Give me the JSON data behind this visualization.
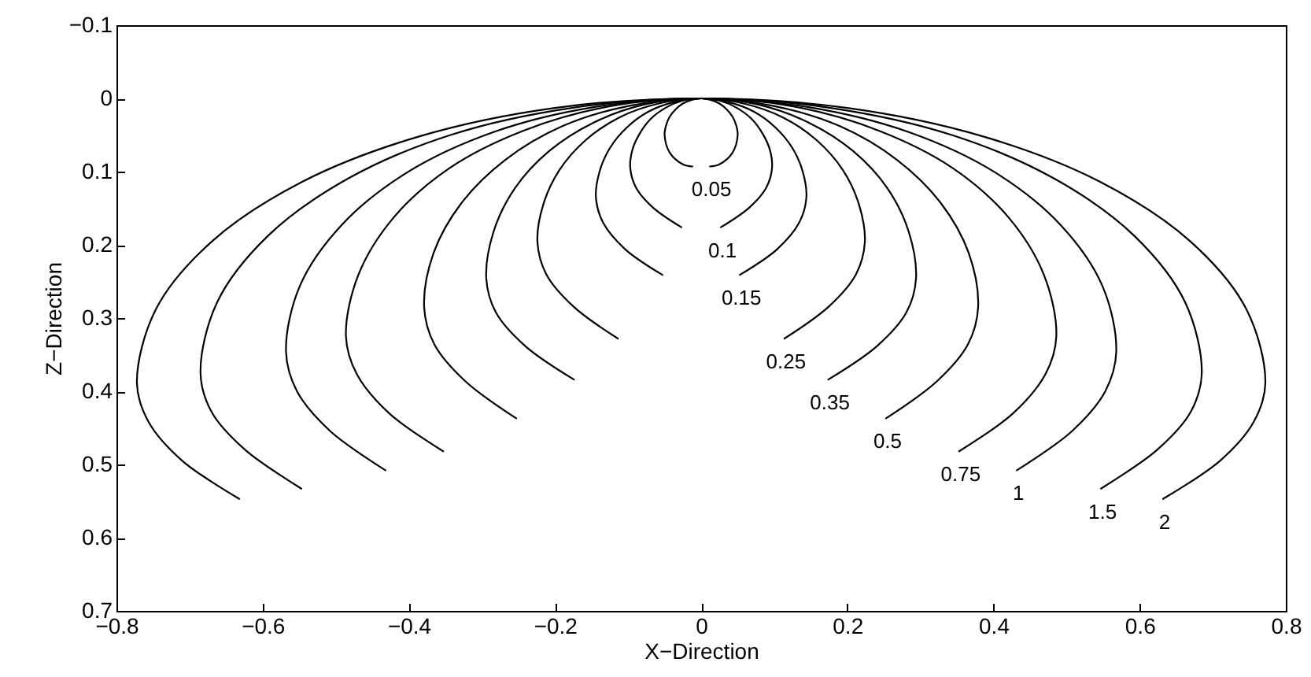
{
  "chart_data": {
    "type": "line",
    "xlabel": "X−Direction",
    "ylabel": "Z−Direction",
    "xlim": [
      -0.8,
      0.8
    ],
    "xticks": [
      -0.8,
      -0.6,
      -0.4,
      -0.2,
      0,
      0.2,
      0.4,
      0.6,
      0.8
    ],
    "ylim": [
      0.7,
      -0.1
    ],
    "yticks": [
      -0.1,
      0,
      0.1,
      0.2,
      0.3,
      0.4,
      0.5,
      0.6,
      0.7
    ],
    "series": [
      {
        "name": "0.05",
        "color": "#000000",
        "x": [
          -0.012,
          -0.025,
          -0.043,
          -0.05,
          -0.048,
          -0.043,
          -0.035,
          -0.025,
          -0.013,
          0,
          0.013,
          0.025,
          0.035,
          0.043,
          0.048,
          0.05,
          0.043,
          0.025,
          0.012
        ],
        "values": [
          0.093,
          0.09,
          0.074,
          0.05,
          0.037,
          0.025,
          0.015,
          0.007,
          0.002,
          0,
          0.002,
          0.007,
          0.015,
          0.025,
          0.037,
          0.05,
          0.074,
          0.09,
          0.093
        ]
      },
      {
        "name": "0.1",
        "color": "#000000",
        "x": [
          -0.027,
          -0.066,
          -0.089,
          -0.097,
          -0.094,
          -0.084,
          -0.069,
          -0.049,
          -0.025,
          0,
          0.025,
          0.049,
          0.069,
          0.084,
          0.094,
          0.097,
          0.089,
          0.066,
          0.027
        ],
        "values": [
          0.176,
          0.149,
          0.122,
          0.095,
          0.07,
          0.048,
          0.028,
          0.013,
          0.003,
          0,
          0.003,
          0.013,
          0.028,
          0.048,
          0.07,
          0.095,
          0.122,
          0.149,
          0.176
        ]
      },
      {
        "name": "0.15",
        "color": "#000000",
        "x": [
          -0.053,
          -0.104,
          -0.134,
          -0.144,
          -0.139,
          -0.125,
          -0.102,
          -0.072,
          -0.037,
          0,
          0.037,
          0.072,
          0.102,
          0.125,
          0.139,
          0.144,
          0.134,
          0.104,
          0.053
        ],
        "values": [
          0.241,
          0.206,
          0.17,
          0.135,
          0.1,
          0.068,
          0.04,
          0.018,
          0.005,
          0,
          0.005,
          0.018,
          0.04,
          0.068,
          0.1,
          0.135,
          0.17,
          0.206,
          0.241
        ]
      },
      {
        "name": "0.25",
        "color": "#000000",
        "x": [
          -0.114,
          -0.175,
          -0.212,
          -0.224,
          -0.216,
          -0.194,
          -0.158,
          -0.112,
          -0.058,
          0,
          0.058,
          0.112,
          0.158,
          0.194,
          0.216,
          0.224,
          0.212,
          0.175,
          0.114
        ],
        "values": [
          0.328,
          0.284,
          0.24,
          0.196,
          0.145,
          0.098,
          0.057,
          0.026,
          0.007,
          0,
          0.007,
          0.026,
          0.057,
          0.098,
          0.145,
          0.196,
          0.24,
          0.284,
          0.328
        ]
      },
      {
        "name": "0.35",
        "color": "#000000",
        "x": [
          -0.174,
          -0.241,
          -0.281,
          -0.294,
          -0.284,
          -0.255,
          -0.208,
          -0.147,
          -0.076,
          0,
          0.076,
          0.147,
          0.208,
          0.255,
          0.284,
          0.294,
          0.281,
          0.241,
          0.174
        ],
        "values": [
          0.384,
          0.338,
          0.292,
          0.246,
          0.182,
          0.123,
          0.072,
          0.033,
          0.008,
          0,
          0.008,
          0.033,
          0.072,
          0.123,
          0.182,
          0.246,
          0.292,
          0.338,
          0.384
        ]
      },
      {
        "name": "0.5",
        "color": "#000000",
        "x": [
          -0.253,
          -0.323,
          -0.365,
          -0.379,
          -0.366,
          -0.328,
          -0.268,
          -0.19,
          -0.098,
          0,
          0.098,
          0.19,
          0.268,
          0.328,
          0.366,
          0.379,
          0.365,
          0.323,
          0.253
        ],
        "values": [
          0.437,
          0.386,
          0.336,
          0.285,
          0.211,
          0.143,
          0.084,
          0.038,
          0.01,
          0,
          0.01,
          0.038,
          0.084,
          0.143,
          0.211,
          0.285,
          0.336,
          0.386,
          0.437
        ]
      },
      {
        "name": "0.75",
        "color": "#000000",
        "x": [
          -0.353,
          -0.427,
          -0.471,
          -0.486,
          -0.469,
          -0.421,
          -0.344,
          -0.243,
          -0.126,
          0,
          0.126,
          0.243,
          0.344,
          0.421,
          0.469,
          0.486,
          0.471,
          0.427,
          0.353
        ],
        "values": [
          0.482,
          0.43,
          0.377,
          0.325,
          0.241,
          0.163,
          0.095,
          0.044,
          0.011,
          0,
          0.011,
          0.044,
          0.095,
          0.163,
          0.241,
          0.325,
          0.377,
          0.43,
          0.482
        ]
      },
      {
        "name": "1",
        "color": "#000000",
        "x": [
          -0.432,
          -0.508,
          -0.553,
          -0.568,
          -0.549,
          -0.492,
          -0.402,
          -0.284,
          -0.147,
          0,
          0.147,
          0.284,
          0.402,
          0.492,
          0.549,
          0.568,
          0.553,
          0.508,
          0.432
        ],
        "values": [
          0.508,
          0.454,
          0.4,
          0.346,
          0.256,
          0.173,
          0.101,
          0.046,
          0.012,
          0,
          0.012,
          0.046,
          0.101,
          0.173,
          0.256,
          0.346,
          0.4,
          0.454,
          0.508
        ]
      },
      {
        "name": "1.5",
        "color": "#000000",
        "x": [
          -0.547,
          -0.624,
          -0.67,
          -0.685,
          -0.662,
          -0.593,
          -0.484,
          -0.343,
          -0.177,
          0,
          0.177,
          0.343,
          0.484,
          0.593,
          0.662,
          0.685,
          0.67,
          0.624,
          0.547
        ],
        "values": [
          0.533,
          0.48,
          0.428,
          0.375,
          0.278,
          0.188,
          0.11,
          0.05,
          0.013,
          0,
          0.013,
          0.05,
          0.11,
          0.188,
          0.278,
          0.375,
          0.428,
          0.48,
          0.533
        ]
      },
      {
        "name": "2",
        "color": "#000000",
        "x": [
          -0.632,
          -0.71,
          -0.756,
          -0.772,
          -0.746,
          -0.669,
          -0.546,
          -0.386,
          -0.2,
          0,
          0.2,
          0.386,
          0.546,
          0.669,
          0.746,
          0.772,
          0.756,
          0.71,
          0.632
        ],
        "values": [
          0.547,
          0.495,
          0.442,
          0.389,
          0.288,
          0.195,
          0.114,
          0.052,
          0.013,
          0,
          0.013,
          0.052,
          0.114,
          0.195,
          0.288,
          0.389,
          0.442,
          0.495,
          0.547
        ]
      }
    ]
  }
}
